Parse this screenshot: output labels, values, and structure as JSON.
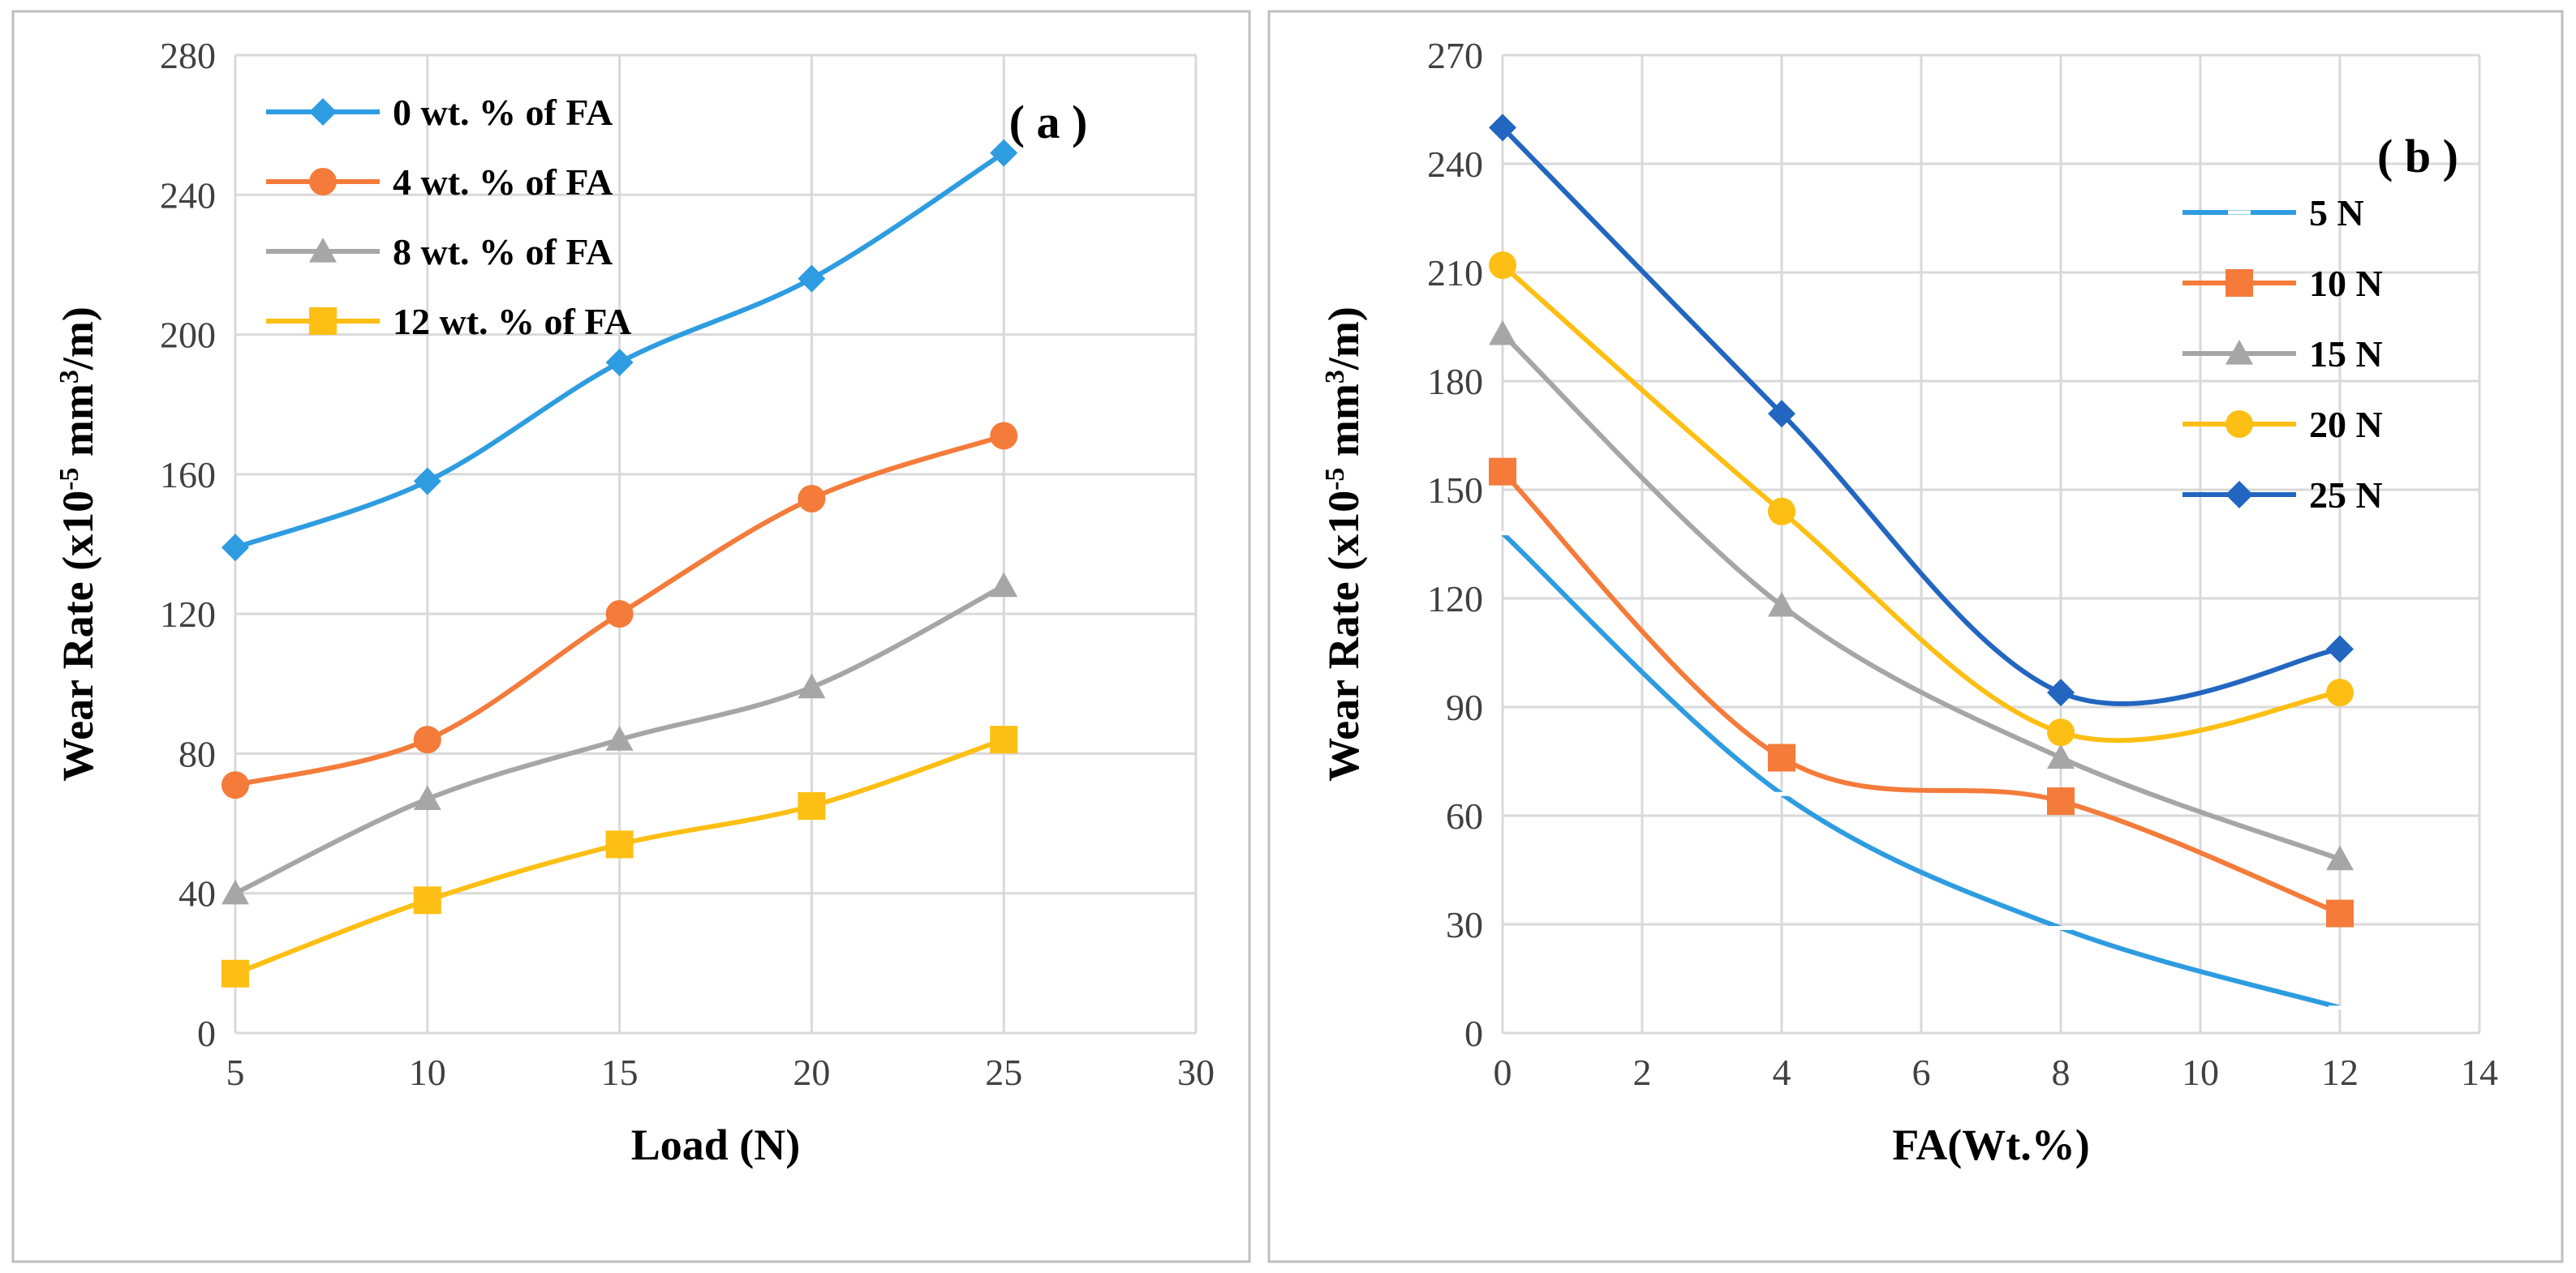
{
  "colors": {
    "blue_light": "#2e9ce0",
    "orange": "#f47b3a",
    "gray": "#a6a6a6",
    "yellow": "#fdbf13",
    "blue_dark": "#2266c0"
  },
  "chart_data": [
    {
      "type": "line",
      "panel_label": "( a )",
      "xlabel": "Load (N)",
      "ylabel": "Wear Rate (x10-5 mm3/m)",
      "ylabel_parts": {
        "main": "Wear Rate (x10",
        "exp1": "-5",
        "mid": " mm",
        "exp2": "3",
        "end": "/m)"
      },
      "xlim": [
        5,
        30
      ],
      "ylim": [
        0,
        280
      ],
      "x_ticks": [
        5,
        10,
        15,
        20,
        25,
        30
      ],
      "y_ticks": [
        0,
        40,
        80,
        120,
        160,
        200,
        240,
        280
      ],
      "grid": true,
      "legend_position": "top-left",
      "x": [
        5,
        10,
        15,
        20,
        25
      ],
      "series": [
        {
          "name": "0 wt. % of FA",
          "marker": "diamond",
          "color": "#2e9ce0",
          "values": [
            139,
            158,
            192,
            216,
            252
          ]
        },
        {
          "name": "4 wt. % of FA",
          "marker": "circle",
          "color": "#f47b3a",
          "values": [
            71,
            84,
            120,
            153,
            171
          ]
        },
        {
          "name": "8 wt. % of FA",
          "marker": "triangle",
          "color": "#a6a6a6",
          "values": [
            40,
            67,
            84,
            99,
            128
          ]
        },
        {
          "name": "12 wt. % of FA",
          "marker": "square",
          "color": "#fdbf13",
          "values": [
            17,
            38,
            54,
            65,
            84
          ]
        }
      ]
    },
    {
      "type": "line",
      "panel_label": "( b )",
      "xlabel": "FA(Wt.%)",
      "ylabel": "Wear Rate (x10-5 mm3/m)",
      "ylabel_parts": {
        "main": "Wear Rate (x10",
        "exp1": "-5",
        "mid": " mm",
        "exp2": "3",
        "end": "/m)"
      },
      "xlim": [
        0,
        14
      ],
      "ylim": [
        0,
        270
      ],
      "x_ticks": [
        0,
        2,
        4,
        6,
        8,
        10,
        12,
        14
      ],
      "y_ticks": [
        0,
        30,
        60,
        90,
        120,
        150,
        180,
        210,
        240,
        270
      ],
      "grid": true,
      "legend_position": "right",
      "x": [
        0,
        4,
        8,
        12
      ],
      "series": [
        {
          "name": "5 N",
          "marker": "dash",
          "color": "#2e9ce0",
          "values": [
            138,
            66,
            29,
            7
          ]
        },
        {
          "name": "10 N",
          "marker": "square",
          "color": "#f47b3a",
          "values": [
            155,
            76,
            64,
            33
          ]
        },
        {
          "name": "15 N",
          "marker": "triangle",
          "color": "#a6a6a6",
          "values": [
            193,
            118,
            76,
            48
          ]
        },
        {
          "name": "20 N",
          "marker": "circle",
          "color": "#fdbf13",
          "values": [
            212,
            144,
            83,
            94
          ]
        },
        {
          "name": "25 N",
          "marker": "diamond",
          "color": "#2266c0",
          "values": [
            250,
            171,
            94,
            106
          ]
        }
      ]
    }
  ]
}
